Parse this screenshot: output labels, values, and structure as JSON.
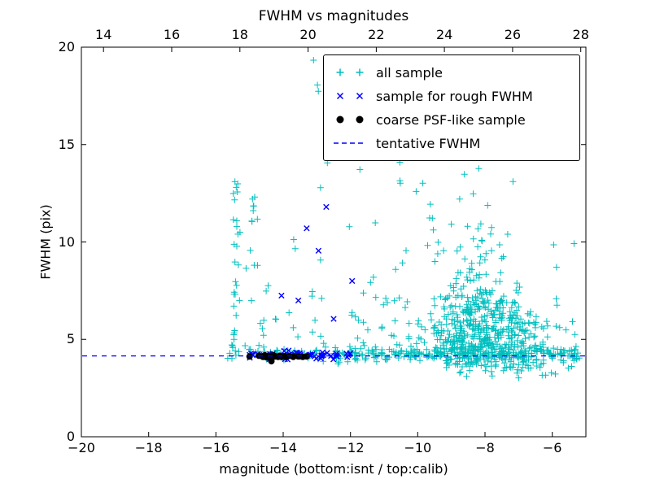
{
  "figure": {
    "title": "FWHM vs magnitudes",
    "xlabel": "magnitude (bottom:isnt / top:calib)",
    "ylabel": "FWHM (pix)"
  },
  "axes": {
    "x_bottom": {
      "min": -20,
      "max": -5,
      "ticks": [
        -20,
        -18,
        -16,
        -14,
        -12,
        -10,
        -8,
        -6
      ]
    },
    "x_top": {
      "min": 13.35,
      "max": 28.15,
      "ticks": [
        14,
        16,
        18,
        20,
        22,
        24,
        26,
        28
      ]
    },
    "y": {
      "min": 0,
      "max": 20,
      "ticks": [
        0,
        5,
        10,
        15,
        20
      ]
    }
  },
  "legend": {
    "items": [
      {
        "label": "all sample",
        "marker": "plus",
        "color": "#00bfbf"
      },
      {
        "label": "sample for rough FWHM",
        "marker": "cross",
        "color": "#0000ff"
      },
      {
        "label": "coarse PSF-like sample",
        "marker": "dot",
        "color": "#000000"
      },
      {
        "label": "tentative FWHM",
        "marker": "dashed-line",
        "color": "#0000ff"
      }
    ]
  },
  "chart_data": {
    "type": "scatter",
    "title": "FWHM vs magnitudes",
    "xlabel": "magnitude (bottom:isnt / top:calib)",
    "ylabel": "FWHM (pix)",
    "x_axis_bottom": {
      "label": "isnt magnitude",
      "range": [
        -20,
        -5
      ],
      "ticks": [
        -20,
        -18,
        -16,
        -14,
        -12,
        -10,
        -8,
        -6
      ]
    },
    "x_axis_top": {
      "label": "calib magnitude",
      "range": [
        13.35,
        28.15
      ],
      "ticks": [
        14,
        16,
        18,
        20,
        22,
        24,
        26,
        28
      ]
    },
    "ylim": [
      0,
      20
    ],
    "grid": false,
    "legend_position": "upper right",
    "tentative_fwhm": 4.15,
    "seed": 7,
    "series": [
      {
        "name": "all sample",
        "marker": "plus",
        "color": "#00bfbf",
        "clusters": [
          {
            "count": 30,
            "x": {
              "dist": "uniform",
              "p1": -15.5,
              "p2": -15.28
            },
            "y": {
              "dist": "uniform",
              "p1": 4.0,
              "p2": 13.3
            }
          },
          {
            "count": 14,
            "x": {
              "dist": "uniform",
              "p1": -15.15,
              "p2": -14.75
            },
            "y": {
              "dist": "uniform",
              "p1": 4.3,
              "p2": 12.5
            }
          },
          {
            "count": 6,
            "x": {
              "dist": "uniform",
              "p1": -15.65,
              "p2": -15.45
            },
            "y": {
              "dist": "uniform",
              "p1": 4.0,
              "p2": 5.2
            }
          },
          {
            "count": 40,
            "x": {
              "dist": "uniform",
              "p1": -15.2,
              "p2": -12.4
            },
            "y": {
              "dist": "gauss",
              "p1": 4.3,
              "p2": 0.25,
              "clip": [
                3.8,
                5.2
              ]
            }
          },
          {
            "count": 25,
            "x": {
              "dist": "uniform",
              "p1": -14.8,
              "p2": -12.7
            },
            "y": {
              "dist": "exp",
              "p1": 4.4,
              "p2": 2.4,
              "clip": [
                4.4,
                13.5
              ]
            }
          },
          {
            "count": 10,
            "x": {
              "dist": "uniform",
              "p1": -13.3,
              "p2": -11.4
            },
            "y": {
              "dist": "uniform",
              "p1": 13.5,
              "p2": 19.4
            }
          },
          {
            "count": 35,
            "x": {
              "dist": "uniform",
              "p1": -12.1,
              "p2": -10.1
            },
            "y": {
              "dist": "exp",
              "p1": 4.3,
              "p2": 2.3,
              "clip": [
                4.3,
                14.6
              ]
            }
          },
          {
            "count": 260,
            "x": {
              "dist": "uniform",
              "p1": -12.4,
              "p2": -5.15
            },
            "y": {
              "dist": "gauss",
              "p1": 4.25,
              "p2": 0.2,
              "clip": [
                3.6,
                5.0
              ]
            }
          },
          {
            "count": 430,
            "x": {
              "dist": "gauss",
              "p1": -8.0,
              "p2": 0.9,
              "clip": [
                -10.4,
                -6.2
              ]
            },
            "y": {
              "dist": "gauss",
              "p1": 5.1,
              "p2": 1.0,
              "clip": [
                3.5,
                7.8
              ]
            }
          },
          {
            "count": 130,
            "x": {
              "dist": "gauss",
              "p1": -8.3,
              "p2": 0.6,
              "clip": [
                -9.9,
                -6.9
              ]
            },
            "y": {
              "dist": "exp",
              "p1": 6.3,
              "p2": 1.9,
              "clip": [
                6.3,
                14.6
              ]
            }
          },
          {
            "count": 7,
            "x": {
              "dist": "uniform",
              "p1": -10.0,
              "p2": -8.8
            },
            "y": {
              "dist": "uniform",
              "p1": 14.6,
              "p2": 19.3
            }
          },
          {
            "count": 12,
            "x": {
              "dist": "uniform",
              "p1": -10.7,
              "p2": -9.5
            },
            "y": {
              "dist": "uniform",
              "p1": 9.0,
              "p2": 14.5
            }
          },
          {
            "count": 30,
            "x": {
              "dist": "uniform",
              "p1": -9.2,
              "p2": -5.2
            },
            "y": {
              "dist": "uniform",
              "p1": 3.0,
              "p2": 3.8
            }
          },
          {
            "count": 22,
            "x": {
              "dist": "uniform",
              "p1": -6.5,
              "p2": -5.1
            },
            "y": {
              "dist": "exp",
              "p1": 4.2,
              "p2": 1.7,
              "clip": [
                4.2,
                10.5
              ]
            }
          }
        ]
      },
      {
        "name": "sample for rough FWHM",
        "marker": "cross",
        "color": "#0000ff",
        "clusters": [
          {
            "count": 55,
            "x": {
              "dist": "uniform",
              "p1": -15.05,
              "p2": -11.9
            },
            "y": {
              "dist": "gauss",
              "p1": 4.2,
              "p2": 0.1,
              "clip": [
                3.95,
                4.5
              ]
            }
          }
        ],
        "points": [
          [
            -12.72,
            11.8
          ],
          [
            -13.3,
            10.7
          ],
          [
            -12.95,
            9.55
          ],
          [
            -14.05,
            7.25
          ],
          [
            -13.55,
            7.0
          ],
          [
            -12.5,
            6.05
          ],
          [
            -11.95,
            8.0
          ]
        ]
      },
      {
        "name": "coarse PSF-like sample",
        "marker": "dot",
        "color": "#000000",
        "points": [
          [
            -15.0,
            4.12
          ],
          [
            -14.72,
            4.16
          ],
          [
            -14.6,
            4.1
          ],
          [
            -14.55,
            4.18
          ],
          [
            -14.5,
            4.08
          ],
          [
            -14.45,
            4.15
          ],
          [
            -14.42,
            4.1
          ],
          [
            -14.38,
            4.16
          ],
          [
            -14.3,
            4.1
          ],
          [
            -14.28,
            4.18
          ],
          [
            -14.22,
            4.12
          ],
          [
            -14.15,
            4.1
          ],
          [
            -14.1,
            4.16
          ],
          [
            -14.05,
            4.1
          ],
          [
            -13.98,
            4.14
          ],
          [
            -13.9,
            4.1
          ],
          [
            -13.82,
            4.15
          ],
          [
            -13.7,
            4.1
          ],
          [
            -13.55,
            4.12
          ],
          [
            -13.42,
            4.1
          ],
          [
            -13.3,
            4.12
          ],
          [
            -14.35,
            3.88
          ]
        ]
      },
      {
        "name": "tentative FWHM",
        "type": "hline",
        "y": 4.15,
        "color": "#0000ff",
        "dash": [
          6,
          6
        ]
      }
    ]
  }
}
